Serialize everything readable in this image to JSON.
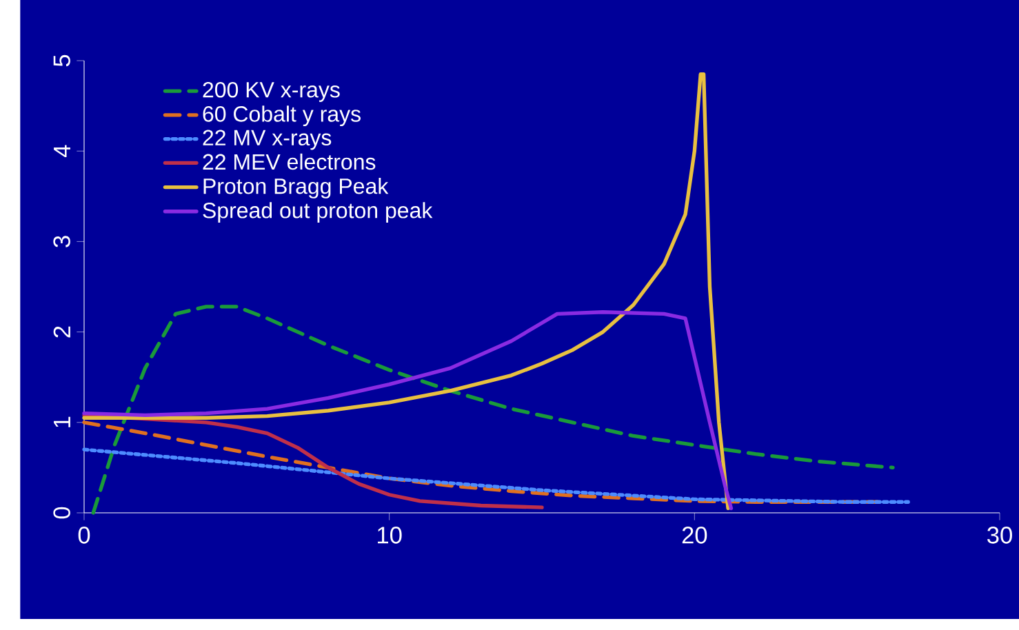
{
  "chart_data": {
    "type": "line",
    "xlim": [
      0,
      30
    ],
    "ylim": [
      0,
      5
    ],
    "xticks": [
      0,
      10,
      20,
      30
    ],
    "yticks": [
      0,
      1,
      2,
      3,
      4,
      5
    ],
    "legend": "top left",
    "series": [
      {
        "name": "200 KV x-rays",
        "color": "#1a9a3a",
        "line_style": "dashed",
        "x": [
          0.3,
          1,
          2,
          3,
          4,
          5,
          6,
          8,
          10,
          12,
          14,
          16,
          18,
          20,
          22,
          24,
          26.5
        ],
        "values": [
          0,
          0.75,
          1.6,
          2.2,
          2.28,
          2.28,
          2.15,
          1.85,
          1.58,
          1.35,
          1.15,
          1.0,
          0.85,
          0.75,
          0.65,
          0.57,
          0.5
        ]
      },
      {
        "name": "60 Cobalt y rays",
        "color": "#e07020",
        "line_style": "dashed",
        "x": [
          0,
          2,
          4,
          6,
          8,
          10,
          12,
          14,
          16,
          18,
          20,
          22,
          24,
          26
        ],
        "values": [
          1.0,
          0.88,
          0.75,
          0.62,
          0.5,
          0.38,
          0.3,
          0.24,
          0.19,
          0.16,
          0.13,
          0.12,
          0.12,
          0.12
        ]
      },
      {
        "name": "22 MV x-rays",
        "color": "#4d8cff",
        "line_style": "dotted",
        "x": [
          0,
          5,
          10,
          15,
          20,
          25,
          27
        ],
        "values": [
          0.7,
          0.55,
          0.38,
          0.25,
          0.15,
          0.12,
          0.12
        ]
      },
      {
        "name": "22 MEV electrons",
        "color": "#c0304a",
        "line_style": "solid",
        "x": [
          0,
          4,
          5,
          6,
          7,
          8,
          9,
          10,
          11,
          13,
          15
        ],
        "values": [
          1.08,
          1.0,
          0.95,
          0.88,
          0.72,
          0.5,
          0.32,
          0.2,
          0.13,
          0.08,
          0.06
        ]
      },
      {
        "name": "Proton Bragg Peak",
        "color": "#e8c040",
        "line_style": "solid",
        "x": [
          0,
          4,
          6,
          8,
          10,
          12,
          14,
          15,
          16,
          17,
          18,
          19,
          19.7,
          20,
          20.2,
          20.3,
          20.5,
          20.8,
          21.1
        ],
        "values": [
          1.05,
          1.05,
          1.07,
          1.13,
          1.22,
          1.35,
          1.52,
          1.65,
          1.8,
          2.0,
          2.3,
          2.75,
          3.3,
          4.0,
          4.85,
          4.85,
          2.5,
          1.0,
          0.05
        ]
      },
      {
        "name": "Spread out proton peak",
        "color": "#8a2be2",
        "line_style": "solid",
        "x": [
          0,
          2,
          4,
          6,
          8,
          10,
          12,
          14,
          15,
          15.5,
          17,
          19,
          19.7,
          20.5,
          21,
          21.2
        ],
        "values": [
          1.1,
          1.08,
          1.1,
          1.15,
          1.27,
          1.42,
          1.6,
          1.9,
          2.1,
          2.2,
          2.22,
          2.2,
          2.15,
          1.0,
          0.3,
          0.05
        ]
      }
    ]
  }
}
